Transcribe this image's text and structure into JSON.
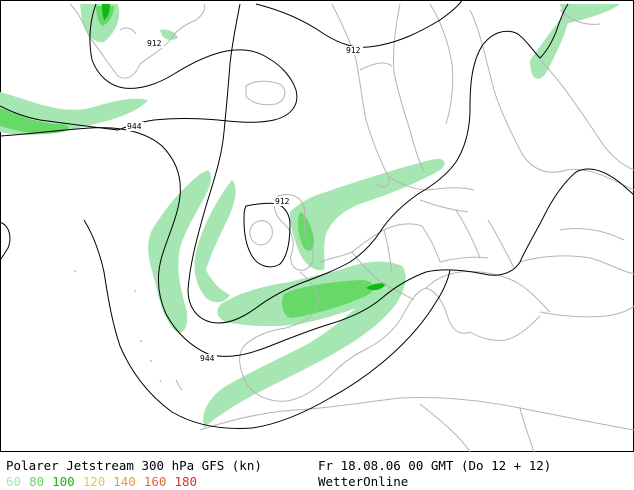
{
  "map": {
    "contour_labels": [
      "912",
      "912",
      "912",
      "944",
      "944"
    ]
  },
  "footer": {
    "title": "Polarer Jetstream 300 hPa GFS (kn)",
    "datetime": "Fr 18.08.06 00 GMT (Do 12 + 12)",
    "brand": "WetterOnline",
    "legend": [
      {
        "label": "60",
        "color": "#a6e6b3"
      },
      {
        "label": "80",
        "color": "#66d966"
      },
      {
        "label": "100",
        "color": "#10b810"
      },
      {
        "label": "120",
        "color": "#e3c75c"
      },
      {
        "label": "140",
        "color": "#e39d3c"
      },
      {
        "label": "160",
        "color": "#d86a3c"
      },
      {
        "label": "180",
        "color": "#d83030"
      }
    ]
  },
  "colors": {
    "coast": "#b4b4b4",
    "contour": "#000000",
    "jet_60": "#a6e6b3",
    "jet_80": "#66d966",
    "jet_100": "#10b810"
  }
}
